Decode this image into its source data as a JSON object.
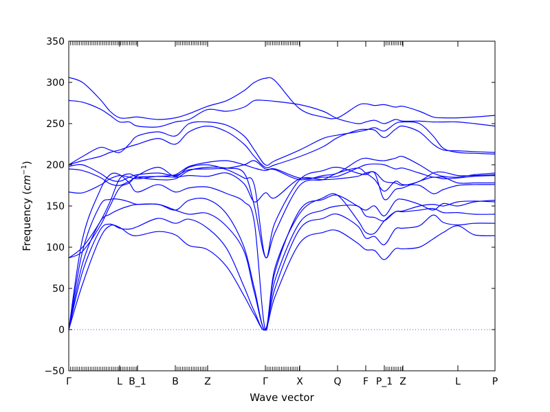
{
  "chart_data": {
    "type": "line",
    "title": "",
    "xlabel": "Wave vector",
    "ylabel_prefix": "Frequency (",
    "ylabel_unit": "cm",
    "ylabel_exp": "−1",
    "ylabel_suffix": ")",
    "ylim": [
      -50,
      350
    ],
    "yticks": [
      -50,
      0,
      50,
      100,
      150,
      200,
      250,
      300,
      350
    ],
    "xlim": [
      0,
      620
    ],
    "grid": false,
    "legend": "none",
    "line_color": "#0000ff",
    "zero_line_color": "#4444ff",
    "high_symmetry_points": [
      {
        "label": "Γ",
        "x": 0
      },
      {
        "label": "L",
        "x": 74
      },
      {
        "label": "B_1",
        "x": 100
      },
      {
        "label": "B",
        "x": 155
      },
      {
        "label": "Z",
        "x": 202
      },
      {
        "label": "Γ",
        "x": 286
      },
      {
        "label": "X",
        "x": 336
      },
      {
        "label": "Q",
        "x": 391
      },
      {
        "label": "F",
        "x": 432
      },
      {
        "label": "P_1",
        "x": 459
      },
      {
        "label": "Z",
        "x": 486
      },
      {
        "label": "L",
        "x": 566
      },
      {
        "label": "P",
        "x": 620
      }
    ],
    "minor_tick_ranges": [
      [
        0,
        100
      ],
      [
        155,
        202
      ],
      [
        286,
        336
      ],
      [
        391,
        391
      ],
      [
        459,
        486
      ]
    ],
    "series": [
      {
        "x": [
          0,
          20,
          45,
          60,
          74,
          88,
          100,
          130,
          155,
          175,
          202,
          230,
          255,
          270,
          286,
          300,
          336,
          370,
          391,
          420,
          432,
          445,
          459,
          475,
          486,
          510,
          530,
          545,
          566,
          590,
          620
        ],
        "values": [
          0,
          55,
          110,
          126,
          124,
          116,
          114,
          119,
          115,
          102,
          97,
          76,
          41,
          18,
          0,
          40,
          105,
          118,
          120,
          105,
          97,
          96,
          85,
          98,
          98,
          100,
          110,
          118,
          126,
          115,
          114
        ]
      },
      {
        "x": [
          0,
          20,
          45,
          60,
          74,
          88,
          100,
          130,
          155,
          175,
          202,
          230,
          255,
          270,
          286,
          300,
          336,
          370,
          391,
          420,
          432,
          445,
          459,
          475,
          486,
          510,
          530,
          545,
          566,
          590,
          620
        ],
        "values": [
          0,
          70,
          120,
          128,
          123,
          122,
          125,
          135,
          129,
          134,
          123,
          98,
          52,
          22,
          0,
          50,
          122,
          135,
          140,
          126,
          111,
          113,
          103,
          122,
          123,
          126,
          139,
          130,
          127,
          129,
          129
        ]
      },
      {
        "x": [
          0,
          20,
          45,
          60,
          74,
          88,
          100,
          130,
          155,
          175,
          202,
          230,
          255,
          270,
          286,
          300,
          336,
          370,
          391,
          420,
          432,
          445,
          459,
          475,
          486,
          510,
          530,
          545,
          566,
          590,
          620
        ],
        "values": [
          0,
          80,
          130,
          140,
          146,
          150,
          152,
          152,
          145,
          140,
          141,
          125,
          95,
          45,
          0,
          60,
          130,
          145,
          150,
          150,
          138,
          136,
          132,
          143,
          143,
          145,
          147,
          142,
          142,
          140,
          140
        ]
      },
      {
        "x": [
          0,
          20,
          45,
          60,
          74,
          88,
          100,
          130,
          155,
          175,
          202,
          230,
          255,
          270,
          286,
          300,
          336,
          370,
          391,
          420,
          432,
          445,
          459,
          475,
          486,
          510,
          530,
          545,
          566,
          590,
          620
        ],
        "values": [
          0,
          95,
          150,
          158,
          158,
          155,
          152,
          152,
          145,
          157,
          158,
          140,
          100,
          50,
          0,
          70,
          145,
          158,
          163,
          150,
          145,
          150,
          138,
          156,
          158,
          152,
          145,
          153,
          150,
          155,
          157
        ]
      },
      {
        "x": [
          0,
          20,
          45,
          60,
          74,
          88,
          100,
          130,
          155,
          175,
          202,
          230,
          255,
          270,
          286,
          300,
          336,
          370,
          391,
          420,
          432,
          445,
          459,
          475,
          486,
          510,
          530,
          545,
          566,
          590,
          620
        ],
        "values": [
          0,
          110,
          168,
          188,
          188,
          178,
          167,
          176,
          167,
          172,
          173,
          165,
          155,
          130,
          0,
          75,
          141,
          160,
          163,
          133,
          118,
          117,
          132,
          143,
          144,
          150,
          152,
          150,
          155,
          156,
          155
        ]
      },
      {
        "x": [
          0,
          20,
          45,
          60,
          74,
          88,
          100,
          130,
          155,
          175,
          202,
          230,
          255,
          270,
          286,
          300,
          336,
          370,
          391,
          420,
          432,
          445,
          459,
          475,
          486,
          510,
          530,
          545,
          566,
          590,
          620
        ],
        "values": [
          87,
          100,
          130,
          155,
          183,
          189,
          185,
          182,
          183,
          193,
          197,
          196,
          190,
          150,
          88,
          118,
          175,
          182,
          190,
          196,
          190,
          182,
          168,
          180,
          176,
          175,
          165,
          170,
          175,
          176,
          176
        ]
      },
      {
        "x": [
          0,
          20,
          45,
          60,
          74,
          88,
          100,
          130,
          155,
          175,
          202,
          230,
          255,
          270,
          286,
          300,
          336,
          370,
          391,
          420,
          432,
          445,
          459,
          475,
          486,
          510,
          530,
          545,
          566,
          590,
          620
        ],
        "values": [
          87,
          95,
          125,
          150,
          172,
          178,
          187,
          197,
          186,
          197,
          200,
          194,
          184,
          175,
          88,
          130,
          182,
          193,
          197,
          190,
          188,
          190,
          158,
          170,
          172,
          180,
          185,
          183,
          184,
          186,
          187
        ]
      },
      {
        "x": [
          0,
          20,
          45,
          60,
          74,
          88,
          100,
          130,
          155,
          175,
          202,
          230,
          255,
          270,
          286,
          300,
          336,
          370,
          391,
          420,
          432,
          445,
          459,
          475,
          486,
          510,
          530,
          545,
          566,
          590,
          620
        ],
        "values": [
          167,
          166,
          175,
          183,
          187,
          185,
          183,
          186,
          185,
          187,
          186,
          190,
          177,
          155,
          166,
          160,
          183,
          182,
          183,
          186,
          190,
          191,
          180,
          178,
          175,
          180,
          190,
          191,
          187,
          187,
          188
        ]
      },
      {
        "x": [
          0,
          20,
          45,
          60,
          74,
          88,
          100,
          130,
          155,
          175,
          202,
          230,
          255,
          270,
          286,
          300,
          336,
          370,
          391,
          420,
          432,
          445,
          459,
          475,
          486,
          510,
          530,
          545,
          566,
          590,
          620
        ],
        "values": [
          195,
          193,
          185,
          177,
          175,
          180,
          185,
          186,
          188,
          198,
          203,
          205,
          200,
          196,
          193,
          195,
          184,
          185,
          186,
          196,
          200,
          201,
          200,
          195,
          196,
          190,
          185,
          185,
          178,
          178,
          178
        ]
      },
      {
        "x": [
          0,
          20,
          45,
          60,
          74,
          88,
          100,
          130,
          155,
          175,
          202,
          230,
          255,
          270,
          286,
          300,
          336,
          370,
          391,
          420,
          432,
          445,
          459,
          475,
          486,
          510,
          530,
          545,
          566,
          590,
          620
        ],
        "values": [
          198,
          200,
          190,
          182,
          180,
          185,
          188,
          190,
          187,
          194,
          195,
          196,
          200,
          205,
          195,
          194,
          182,
          187,
          190,
          205,
          208,
          206,
          205,
          208,
          210,
          200,
          190,
          186,
          185,
          188,
          190
        ]
      },
      {
        "x": [
          0,
          20,
          45,
          60,
          74,
          88,
          100,
          130,
          155,
          175,
          202,
          230,
          255,
          270,
          286,
          300,
          336,
          370,
          391,
          420,
          432,
          445,
          459,
          475,
          486,
          510,
          530,
          545,
          566,
          590,
          620
        ],
        "values": [
          200,
          205,
          210,
          215,
          218,
          222,
          225,
          232,
          225,
          240,
          247,
          240,
          225,
          210,
          197,
          200,
          210,
          222,
          233,
          242,
          243,
          242,
          233,
          243,
          247,
          240,
          225,
          218,
          217,
          216,
          215
        ]
      },
      {
        "x": [
          0,
          20,
          45,
          60,
          74,
          88,
          100,
          130,
          155,
          175,
          202,
          230,
          255,
          270,
          286,
          300,
          336,
          370,
          391,
          420,
          432,
          445,
          459,
          475,
          486,
          510,
          530,
          545,
          566,
          590,
          620
        ],
        "values": [
          200,
          210,
          221,
          218,
          215,
          225,
          235,
          240,
          235,
          250,
          252,
          248,
          235,
          218,
          200,
          205,
          218,
          232,
          236,
          240,
          242,
          245,
          241,
          250,
          252,
          250,
          235,
          220,
          215,
          214,
          213
        ]
      },
      {
        "x": [
          0,
          20,
          45,
          60,
          74,
          88,
          100,
          130,
          155,
          175,
          202,
          230,
          255,
          270,
          286,
          300,
          336,
          370,
          391,
          420,
          432,
          445,
          459,
          475,
          486,
          510,
          530,
          545,
          566,
          590,
          620
        ],
        "values": [
          278,
          276,
          268,
          260,
          252,
          252,
          247,
          246,
          252,
          255,
          267,
          265,
          270,
          278,
          278,
          277,
          273,
          265,
          256,
          250,
          252,
          254,
          250,
          255,
          253,
          253,
          252,
          252,
          252,
          250,
          247
        ]
      },
      {
        "x": [
          0,
          20,
          45,
          60,
          74,
          88,
          100,
          130,
          155,
          175,
          202,
          230,
          255,
          270,
          286,
          300,
          336,
          370,
          391,
          420,
          432,
          445,
          459,
          475,
          486,
          510,
          530,
          545,
          566,
          590,
          620
        ],
        "values": [
          306,
          300,
          280,
          265,
          257,
          257,
          258,
          255,
          257,
          262,
          271,
          278,
          290,
          300,
          305,
          302,
          268,
          258,
          257,
          272,
          274,
          272,
          273,
          270,
          271,
          265,
          258,
          257,
          257,
          258,
          260
        ]
      }
    ]
  }
}
